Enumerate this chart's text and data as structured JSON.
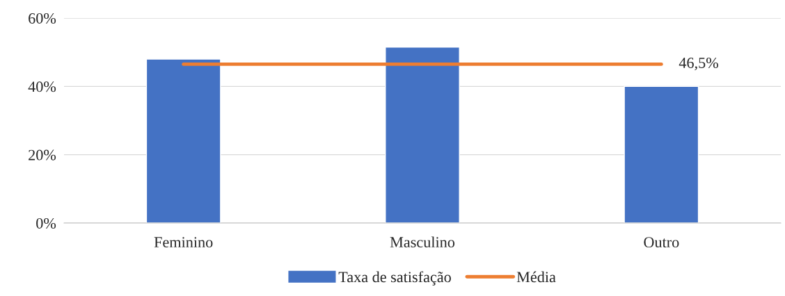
{
  "chart_data": {
    "type": "bar",
    "categories": [
      "Feminino",
      "Masculino",
      "Outro"
    ],
    "series": [
      {
        "name": "Taxa de satisfação",
        "color": "#4472c4",
        "values": [
          48,
          51.5,
          40
        ]
      },
      {
        "name": "Média",
        "type": "line",
        "color": "#ed7d31",
        "values": [
          46.5,
          46.5,
          46.5
        ],
        "value_labels": [
          null,
          null,
          "46,5%"
        ]
      }
    ],
    "ylim": [
      0,
      60
    ],
    "yticks": [
      {
        "value": 0,
        "label": "0%"
      },
      {
        "value": 20,
        "label": "20%"
      },
      {
        "value": 40,
        "label": "40%"
      },
      {
        "value": 60,
        "label": "60%"
      }
    ],
    "grid": "y",
    "legend": "bottom",
    "marker": "none",
    "line_style": "solid"
  }
}
